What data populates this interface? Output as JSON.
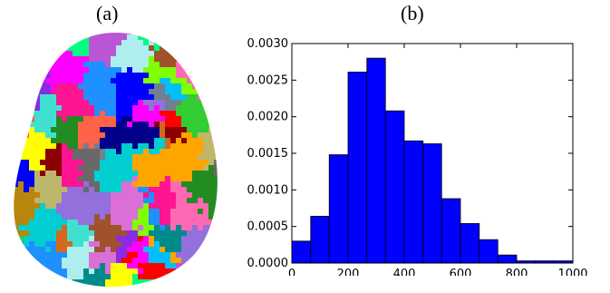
{
  "panels": {
    "a": {
      "label": "(a)"
    },
    "b": {
      "label": "(b)"
    }
  },
  "brain_image": {
    "parcel_colors": [
      "#ff00ff",
      "#00ff7f",
      "#ff1493",
      "#1e90ff",
      "#ffa500",
      "#ff0000",
      "#7fff00",
      "#0000ff",
      "#00ced1",
      "#9370db",
      "#ffff00",
      "#8b0000",
      "#228b22",
      "#b8860b",
      "#00008b",
      "#ff69b4",
      "#40e0d0",
      "#696969",
      "#bdb76b",
      "#00bfff",
      "#da70d6",
      "#32cd32",
      "#8a2be2",
      "#a0522d",
      "#afeeee",
      "#d2691e",
      "#708090",
      "#ff6347",
      "#008b8b",
      "#ba55d3"
    ]
  },
  "chart_data": {
    "type": "bar",
    "title": "",
    "xlabel": "",
    "ylabel": "",
    "bin_edges": [
      0,
      67,
      133,
      200,
      267,
      333,
      400,
      467,
      533,
      600,
      667,
      733,
      800,
      867,
      933,
      1000
    ],
    "values": [
      0.0003,
      0.00064,
      0.00148,
      0.00261,
      0.0028,
      0.00208,
      0.00167,
      0.00163,
      0.00088,
      0.00054,
      0.00032,
      0.00011,
      3e-05,
      3e-05,
      3e-05
    ],
    "xlim": [
      0,
      1000
    ],
    "ylim": [
      0,
      0.003
    ],
    "x_ticks": [
      "0",
      "200",
      "400",
      "600",
      "800",
      "1000"
    ],
    "x_tick_values": [
      0,
      200,
      400,
      600,
      800,
      1000
    ],
    "y_ticks": [
      "0.0000",
      "0.0005",
      "0.0010",
      "0.0015",
      "0.0020",
      "0.0025",
      "0.0030"
    ],
    "y_tick_values": [
      0,
      0.0005,
      0.001,
      0.0015,
      0.002,
      0.0025,
      0.003
    ],
    "bar_color": "#0000ff",
    "grid": false
  }
}
